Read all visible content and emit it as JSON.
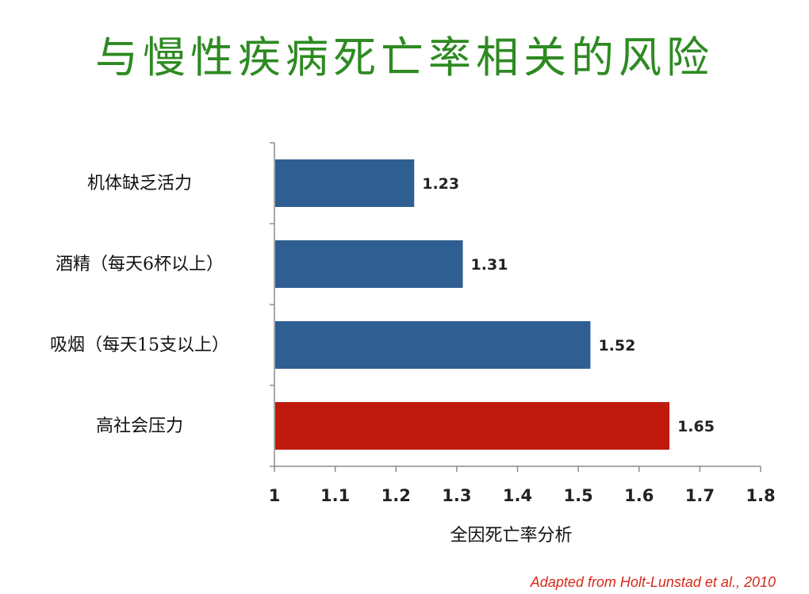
{
  "title": "与慢性疾病死亡率相关的风险",
  "source": "Adapted from Holt-Lunstad et al., 2010",
  "chart_data": {
    "type": "bar",
    "orientation": "horizontal",
    "categories": [
      "机体缺乏活力",
      "酒精（每天6杯以上）",
      "吸烟（每天15支以上）",
      "高社会压力"
    ],
    "values": [
      1.23,
      1.31,
      1.52,
      1.65
    ],
    "data_labels": [
      "1.23",
      "1.31",
      "1.52",
      "1.65"
    ],
    "bar_colors": [
      "#2f5f92",
      "#2f5f92",
      "#2f5f92",
      "#be1a0e"
    ],
    "xlabel": "全因死亡率分析",
    "xlim": [
      1,
      1.8
    ],
    "xticks": [
      1,
      1.1,
      1.2,
      1.3,
      1.4,
      1.5,
      1.6,
      1.7,
      1.8
    ],
    "xtick_labels": [
      "1",
      "1.1",
      "1.2",
      "1.3",
      "1.4",
      "1.5",
      "1.6",
      "1.7",
      "1.8"
    ],
    "grid": false,
    "legend": "none"
  }
}
